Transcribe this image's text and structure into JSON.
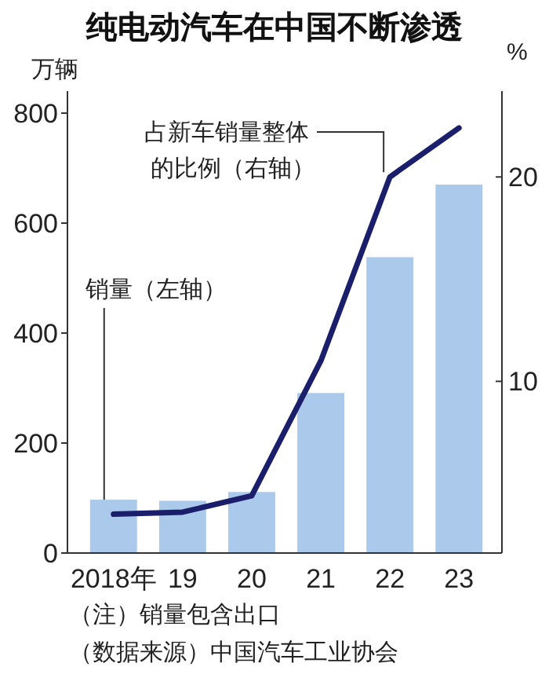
{
  "chart_data": {
    "type": "bar",
    "title": "纯电动汽车在中国不断渗透",
    "ylabel": "万辆",
    "y2label": "%",
    "categories": [
      "2018年",
      "19",
      "20",
      "21",
      "22",
      "23"
    ],
    "series": [
      {
        "name": "销量（左轴）",
        "color": "#abc9ea",
        "values": [
          97,
          95,
          111,
          291,
          538,
          670
        ]
      },
      {
        "name": "占新车销量整体的比例（右轴）",
        "type": "line",
        "axis": "y2",
        "color": "#1b1f6b",
        "values": [
          3.5,
          3.6,
          4.4,
          11.0,
          20.0,
          22.4
        ]
      }
    ],
    "ylim": [
      0,
      840
    ],
    "yticks": [
      0,
      200,
      400,
      600,
      800
    ],
    "y2lim": [
      1.6,
      24.2
    ],
    "y2ticks": [
      10,
      20
    ],
    "grid": false,
    "marker": "none",
    "line_style": "solid",
    "annotations": [
      "（注）销量包含出口",
      "（数据来源）中国汽车工业协会"
    ]
  }
}
